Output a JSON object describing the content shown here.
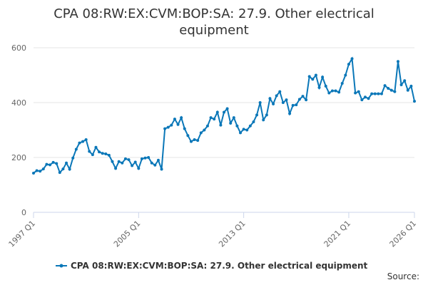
{
  "chart_data": {
    "type": "line",
    "title": "CPA 08:RW:EX:CVM:BOP:SA: 27.9. Other electrical equipment",
    "source_label": "Source:",
    "categories": [
      "1997 Q1",
      null,
      null,
      null,
      null,
      null,
      null,
      null,
      null,
      null,
      null,
      null,
      null,
      null,
      null,
      null,
      null,
      null,
      null,
      null,
      null,
      null,
      null,
      null,
      null,
      null,
      null,
      null,
      null,
      null,
      null,
      null,
      "2005 Q1",
      null,
      null,
      null,
      null,
      null,
      null,
      null,
      null,
      null,
      null,
      null,
      null,
      null,
      null,
      null,
      null,
      null,
      null,
      null,
      null,
      null,
      null,
      null,
      null,
      null,
      null,
      null,
      null,
      null,
      null,
      null,
      "2013 Q1",
      null,
      null,
      null,
      null,
      null,
      null,
      null,
      null,
      null,
      null,
      null,
      null,
      null,
      null,
      null,
      null,
      null,
      null,
      null,
      null,
      null,
      null,
      null,
      null,
      null,
      null,
      null,
      null,
      null,
      null,
      null,
      "2021 Q1",
      null,
      null,
      null,
      null,
      null,
      null,
      null,
      null,
      null,
      null,
      null,
      null,
      null,
      null,
      null,
      null,
      null,
      null,
      null,
      "2026 Q1"
    ],
    "series": [
      {
        "name": "CPA 08:RW:EX:CVM:BOP:SA: 27.9. Other electrical equipment",
        "color": "#0a77b8",
        "values": [
          143,
          152,
          150,
          158,
          175,
          173,
          182,
          178,
          145,
          158,
          180,
          157,
          198,
          230,
          253,
          258,
          265,
          222,
          210,
          237,
          220,
          215,
          213,
          208,
          185,
          160,
          185,
          180,
          195,
          192,
          170,
          183,
          160,
          195,
          198,
          200,
          180,
          172,
          190,
          157,
          305,
          310,
          318,
          340,
          320,
          345,
          305,
          280,
          258,
          265,
          262,
          290,
          300,
          315,
          345,
          340,
          365,
          318,
          365,
          378,
          325,
          345,
          315,
          290,
          303,
          300,
          315,
          330,
          355,
          400,
          337,
          355,
          415,
          395,
          425,
          440,
          400,
          410,
          360,
          390,
          392,
          412,
          423,
          410,
          495,
          485,
          500,
          455,
          493,
          460,
          435,
          443,
          443,
          438,
          470,
          500,
          540,
          560,
          435,
          440,
          410,
          420,
          415,
          432,
          432,
          432,
          432,
          462,
          452,
          445,
          440,
          550,
          465,
          480,
          445,
          460,
          405
        ]
      }
    ],
    "ylim": [
      0,
      600
    ],
    "yticks": [
      0,
      200,
      400,
      600
    ],
    "grid": true
  }
}
